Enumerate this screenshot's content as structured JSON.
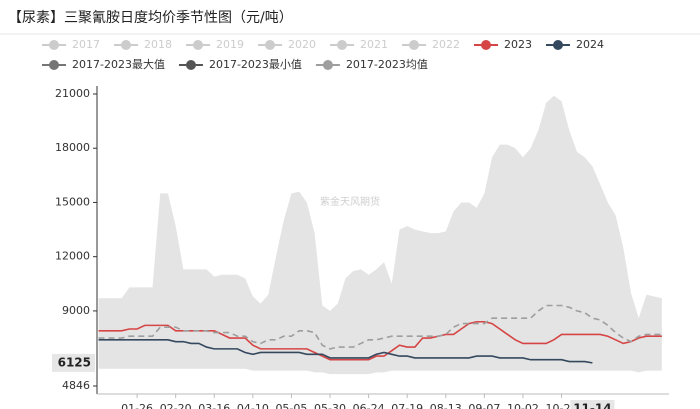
{
  "chart_data": {
    "type": "line",
    "title": "【尿素】三聚氰胺日度均价季节性图（元/吨）",
    "watermark": "紫金天风期货",
    "legend_hidden": [
      "2017",
      "2018",
      "2019",
      "2020",
      "2021",
      "2022"
    ],
    "hidden_color": "#cccccc",
    "band_color": "#e4e4e4",
    "categories": [
      null,
      null,
      null,
      null,
      null,
      "01-26",
      null,
      null,
      null,
      null,
      "02-20",
      null,
      null,
      null,
      null,
      "03-16",
      null,
      null,
      null,
      null,
      "04-10",
      null,
      null,
      null,
      null,
      "05-05",
      null,
      null,
      null,
      null,
      "05-30",
      null,
      null,
      null,
      null,
      "06-24",
      null,
      null,
      null,
      null,
      "07-19",
      null,
      null,
      null,
      null,
      "08-13",
      null,
      null,
      null,
      null,
      "09-07",
      null,
      null,
      null,
      null,
      "10-02",
      null,
      null,
      null,
      null,
      "10-27",
      null,
      null,
      null,
      null,
      null,
      null,
      null,
      null,
      null,
      null,
      null,
      null,
      null
    ],
    "series": [
      {
        "name": "2023",
        "color": "#d64545",
        "values": [
          7900,
          7900,
          7900,
          7900,
          8000,
          8000,
          8200,
          8200,
          8200,
          8200,
          7900,
          7900,
          7900,
          7900,
          7900,
          7900,
          7700,
          7500,
          7500,
          7500,
          7100,
          6900,
          6900,
          6900,
          6900,
          6900,
          6900,
          6900,
          6700,
          6500,
          6300,
          6300,
          6300,
          6300,
          6300,
          6300,
          6500,
          6500,
          6800,
          7100,
          7000,
          7000,
          7500,
          7500,
          7600,
          7700,
          7700,
          8000,
          8300,
          8400,
          8400,
          8300,
          8000,
          7700,
          7400,
          7200,
          7200,
          7200,
          7200,
          7400,
          7700,
          7700,
          7700,
          7700,
          7700,
          7700,
          7600,
          7400,
          7200,
          7300,
          7500,
          7600,
          7600,
          7600
        ]
      },
      {
        "name": "2024",
        "color": "#34495e",
        "values": [
          7400,
          7400,
          7400,
          7400,
          7400,
          7400,
          7400,
          7400,
          7400,
          7400,
          7300,
          7300,
          7200,
          7200,
          7000,
          6900,
          6900,
          6900,
          6900,
          6700,
          6600,
          6700,
          6700,
          6700,
          6700,
          6700,
          6700,
          6600,
          6600,
          6600,
          6400,
          6400,
          6400,
          6400,
          6400,
          6400,
          6600,
          6700,
          6600,
          6500,
          6500,
          6400,
          6400,
          6400,
          6400,
          6400,
          6400,
          6400,
          6400,
          6500,
          6500,
          6500,
          6400,
          6400,
          6400,
          6400,
          6300,
          6300,
          6300,
          6300,
          6300,
          6200,
          6200,
          6200,
          6125,
          null,
          null,
          null,
          null,
          null,
          null,
          null,
          null,
          null
        ]
      },
      {
        "name": "2017-2023最大值",
        "color": "#757575",
        "area_to": "2017-2023最小值",
        "values": [
          9700,
          9700,
          9700,
          9700,
          10300,
          10300,
          10300,
          10300,
          15500,
          15500,
          13700,
          11300,
          11300,
          11300,
          11300,
          10900,
          11000,
          11000,
          11000,
          10800,
          9800,
          9400,
          9900,
          12000,
          14000,
          15500,
          15600,
          15000,
          13300,
          9300,
          9000,
          9400,
          10800,
          11200,
          11300,
          11000,
          11300,
          11700,
          10500,
          13500,
          13700,
          13500,
          13400,
          13300,
          13300,
          13400,
          14500,
          15000,
          15000,
          14700,
          15500,
          17500,
          18200,
          18200,
          18000,
          17500,
          18000,
          19000,
          20500,
          20900,
          20600,
          19000,
          17800,
          17500,
          17000,
          16000,
          15000,
          14300,
          12500,
          10000,
          8600,
          9900,
          9800,
          9700
        ]
      },
      {
        "name": "2017-2023最小值",
        "color": "#555555",
        "values": [
          5800,
          5800,
          5800,
          5800,
          5800,
          5800,
          5800,
          5800,
          5800,
          5800,
          5800,
          5800,
          5800,
          5800,
          5800,
          5800,
          5800,
          5800,
          5800,
          5800,
          5700,
          5700,
          5700,
          5700,
          5700,
          5700,
          5700,
          5700,
          5600,
          5600,
          5500,
          5500,
          5500,
          5500,
          5500,
          5500,
          5600,
          5600,
          5700,
          5700,
          5700,
          5700,
          5700,
          5700,
          5700,
          5700,
          5700,
          5700,
          5700,
          5700,
          5700,
          5700,
          5700,
          5700,
          5700,
          5700,
          5700,
          5700,
          5700,
          5700,
          5700,
          5700,
          5700,
          5700,
          5700,
          5700,
          5700,
          5700,
          5700,
          5700,
          5600,
          5700,
          5700,
          5700
        ]
      },
      {
        "name": "2017-2023均值",
        "color": "#9e9e9e",
        "dash": true,
        "values": [
          7500,
          7500,
          7500,
          7500,
          7600,
          7600,
          7600,
          7600,
          8100,
          8100,
          8100,
          7900,
          7900,
          7900,
          7900,
          7800,
          7800,
          7800,
          7600,
          7600,
          7300,
          7200,
          7400,
          7400,
          7600,
          7600,
          7900,
          7900,
          7800,
          7100,
          6900,
          7000,
          7000,
          7000,
          7200,
          7400,
          7400,
          7500,
          7600,
          7600,
          7600,
          7600,
          7600,
          7600,
          7600,
          7700,
          8100,
          8300,
          8300,
          8300,
          8300,
          8600,
          8600,
          8600,
          8600,
          8600,
          8600,
          9000,
          9300,
          9300,
          9300,
          9200,
          9000,
          8900,
          8600,
          8500,
          8200,
          7800,
          7500,
          7300,
          7600,
          7700,
          7700,
          7700
        ]
      }
    ],
    "ylim": [
      4846,
      21000
    ],
    "yticks": [
      4846,
      9000,
      12000,
      15000,
      18000,
      21000
    ],
    "grid": false,
    "pointer": {
      "x_label": "11-14",
      "y_value": 6125
    }
  }
}
